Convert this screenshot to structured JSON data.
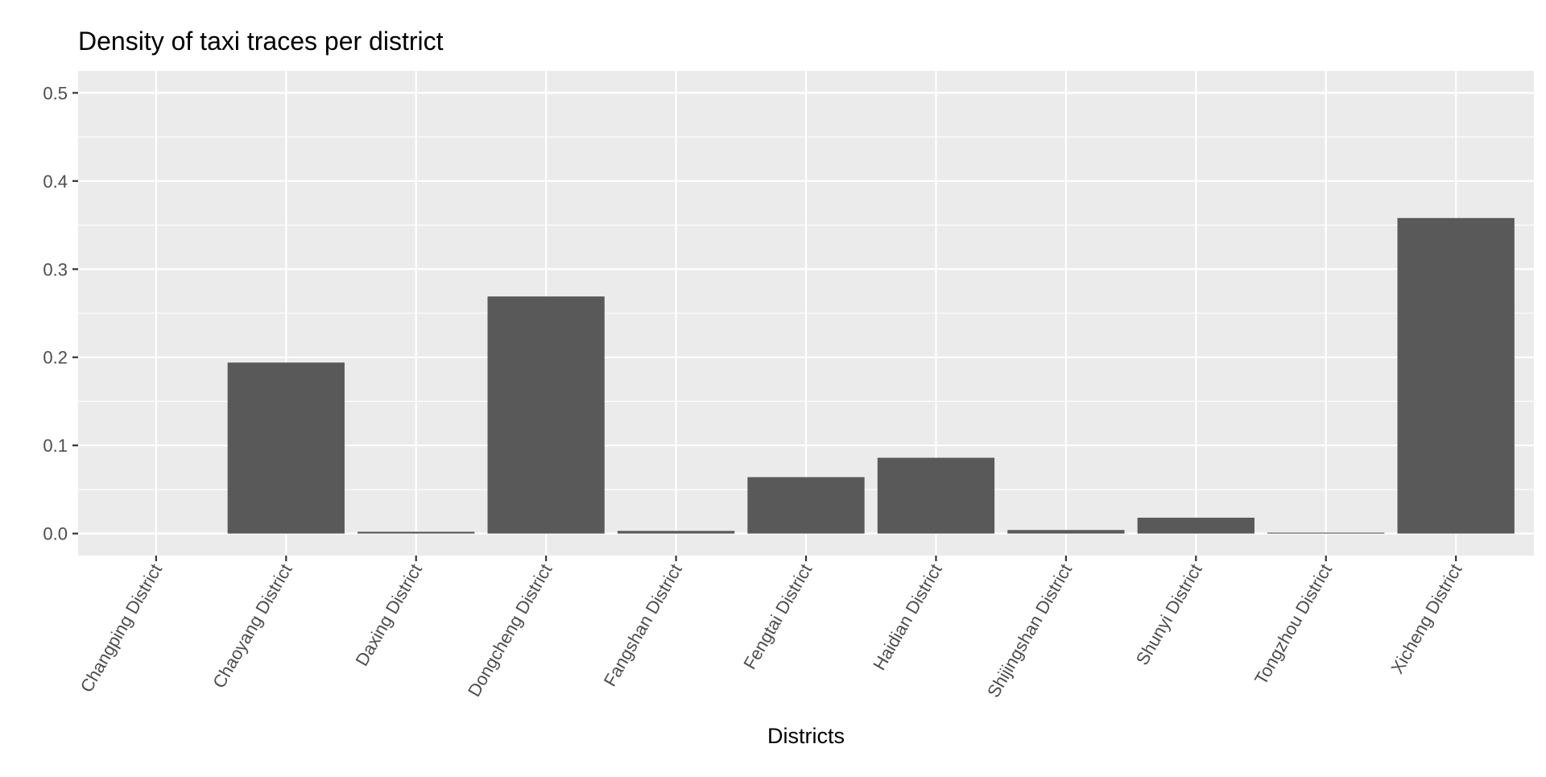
{
  "chart_data": {
    "type": "bar",
    "title": "Density of taxi traces per district",
    "xlabel": "Districts",
    "ylabel": "",
    "ylim": [
      -0.025,
      0.525
    ],
    "yticks": [
      0.0,
      0.1,
      0.2,
      0.3,
      0.4,
      0.5
    ],
    "ytick_labels": [
      "0.0",
      "0.1",
      "0.2",
      "0.3",
      "0.4",
      "0.5"
    ],
    "categories": [
      "Changping District",
      "Chaoyang District",
      "Daxing District",
      "Dongcheng District",
      "Fangshan District",
      "Fengtai District",
      "Haidian District",
      "Shijingshan District",
      "Shunyi District",
      "Tongzhou District",
      "Xicheng District"
    ],
    "values": [
      0.0,
      0.194,
      0.002,
      0.269,
      0.003,
      0.064,
      0.086,
      0.004,
      0.018,
      0.001,
      0.358
    ],
    "grid": true,
    "legend": "none",
    "colors": {
      "panel_background": "#ebebeb",
      "bar_fill": "#595959",
      "grid": "#ffffff",
      "tick_text": "#4d4d4d",
      "title_text": "#000000"
    }
  }
}
